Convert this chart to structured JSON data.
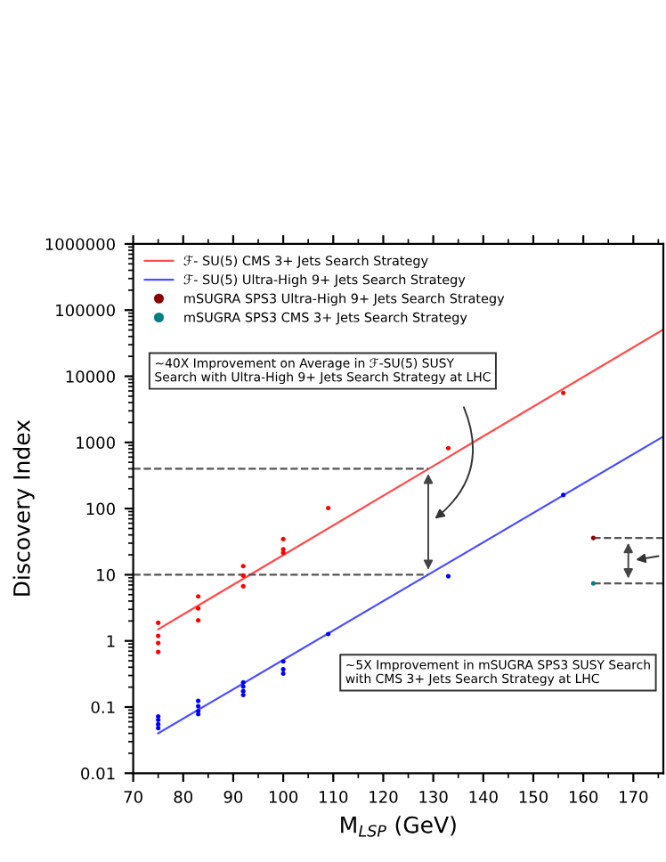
{
  "chart_data": {
    "type": "line",
    "xlabel": "M$_{LSP}$ (GeV)",
    "ylabel": "Discovery Index",
    "log": "y",
    "xlim": [
      70,
      176
    ],
    "ylim": [
      0.01,
      1000000
    ],
    "xticks": [
      70,
      80,
      90,
      100,
      110,
      120,
      130,
      140,
      150,
      160,
      170
    ],
    "yticks": [
      0.01,
      0.1,
      1,
      10,
      100,
      1000,
      10000,
      100000,
      1000000
    ],
    "legend": "top left",
    "grid": false,
    "series": [
      {
        "name": "ℱ- SU(5) CMS 3+ Jets Search Strategy",
        "color": "#ff4d4d",
        "x": [
          75,
          176
        ],
        "values": [
          1.5,
          51000
        ],
        "line_style": "solid",
        "marker": "none"
      },
      {
        "name": "ℱ- SU(5) Ultra-High 9+ Jets Search Strategy",
        "color": "#4d4dff",
        "x": [
          75,
          176
        ],
        "values": [
          0.04,
          1230
        ],
        "line_style": "solid",
        "marker": "none"
      },
      {
        "type": "scatter",
        "name": "mSUGRA SPS3 Ultra-High 9+ Jets Search Strategy",
        "color": "#8b0000",
        "x": [
          162
        ],
        "values": [
          36
        ],
        "marker": "circle"
      },
      {
        "type": "scatter",
        "name": "mSUGRA SPS3 CMS 3+ Jets Search Strategy",
        "color": "#008080",
        "x": [
          162
        ],
        "values": [
          7.4
        ],
        "marker": "circle"
      },
      {
        "type": "scatter",
        "color": "#ff0000",
        "x": [
          75,
          75,
          75,
          75,
          83,
          83,
          83,
          92,
          92,
          92,
          100,
          100,
          100,
          109,
          133,
          156
        ],
        "values": [
          1.88,
          1.19,
          0.93,
          0.68,
          4.7,
          3.1,
          2.04,
          13.5,
          9.7,
          6.7,
          34.5,
          24.2,
          21.4,
          102,
          820,
          5600
        ],
        "marker": "circle"
      },
      {
        "type": "scatter",
        "color": "#0000ff",
        "x": [
          75,
          75,
          75,
          75,
          83,
          83,
          83,
          83,
          92,
          92,
          92,
          92,
          100,
          100,
          100,
          109,
          133,
          156
        ],
        "values": [
          0.072,
          0.064,
          0.055,
          0.048,
          0.124,
          0.103,
          0.087,
          0.078,
          0.235,
          0.204,
          0.174,
          0.152,
          0.49,
          0.372,
          0.32,
          1.27,
          9.5,
          160
        ],
        "marker": "circle"
      },
      {
        "type": "line",
        "color": "#555555",
        "x": [
          70,
          129
        ],
        "values": [
          400,
          400
        ],
        "line_style": "dashed",
        "marker": "none"
      },
      {
        "type": "line",
        "color": "#555555",
        "x": [
          70,
          129
        ],
        "values": [
          10,
          10
        ],
        "line_style": "dashed",
        "marker": "none"
      },
      {
        "type": "line",
        "color": "#555555",
        "x": [
          162,
          176
        ],
        "values": [
          36,
          36
        ],
        "line_style": "dashed",
        "marker": "none"
      },
      {
        "type": "line",
        "color": "#555555",
        "x": [
          162,
          176
        ],
        "values": [
          7.4,
          7.4
        ],
        "line_style": "dashed",
        "marker": "none"
      }
    ],
    "annotations": [
      "~40X Improvement on Average in ℱ-SU(5) SUSY\nSearch with Ultra-High 9+ Jets Search Strategy at LHC",
      "~5X Improvement in mSUGRA SPS3 SUSY Search\nwith CMS 3+ Jets Search Strategy at LHC"
    ]
  }
}
